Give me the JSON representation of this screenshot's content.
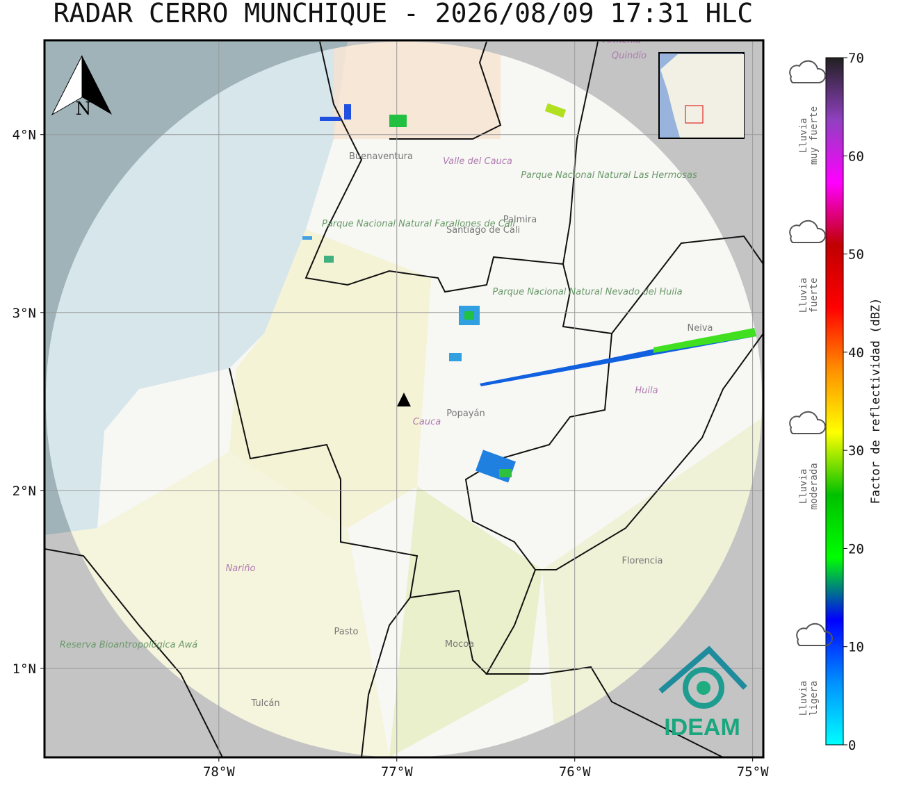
{
  "title": "RADAR CERRO MUNCHIQUE - 2026/08/09 17:31 HLC",
  "north_label": "N",
  "logo_text": "IDEAM",
  "map": {
    "xlim": [
      -78.98,
      -74.94
    ],
    "ylim": [
      0.5,
      4.53
    ],
    "xticks": [
      {
        "value": -78,
        "label": "78°W"
      },
      {
        "value": -77,
        "label": "77°W"
      },
      {
        "value": -76,
        "label": "76°W"
      },
      {
        "value": -75,
        "label": "75°W"
      }
    ],
    "yticks": [
      {
        "value": 4,
        "label": "4°N"
      },
      {
        "value": 3,
        "label": "3°N"
      },
      {
        "value": 2,
        "label": "2°N"
      },
      {
        "value": 1,
        "label": "1°N"
      }
    ],
    "grid": true,
    "places": [
      "Buenaventura",
      "Valle del Cauca",
      "Palmira",
      "Santiago de Cali",
      "Parque Nacional Natural Farallones de Cali",
      "Parque Nacional Natural Las Hermosas",
      "Parque Nacional Natural Nevado del Huila",
      "Neiva",
      "Huila",
      "Cauca",
      "Popayán",
      "Nariño",
      "Florencia",
      "Pasto",
      "Mocoa",
      "Reserva Bioantropológica Awá",
      "Tulcán",
      "Armenia",
      "Quindío"
    ]
  },
  "colorbar": {
    "label": "Factor de reflectividad (dBZ)",
    "range": [
      0,
      70
    ],
    "ticks": [
      0,
      10,
      20,
      30,
      40,
      50,
      60,
      70
    ],
    "colors": [
      "#00ffff",
      "#0090ff",
      "#0000ff",
      "#00ff00",
      "#00c000",
      "#ffff00",
      "#ff9000",
      "#ff0000",
      "#c00000",
      "#ff00ff",
      "#9040c0",
      "#202020"
    ]
  },
  "rain_levels": [
    [
      "Lluvia",
      "muy fuerte"
    ],
    [
      "Lluvia",
      "fuerte"
    ],
    [
      "Lluvia",
      "moderada"
    ],
    [
      "Lluvia",
      "ligera"
    ]
  ]
}
